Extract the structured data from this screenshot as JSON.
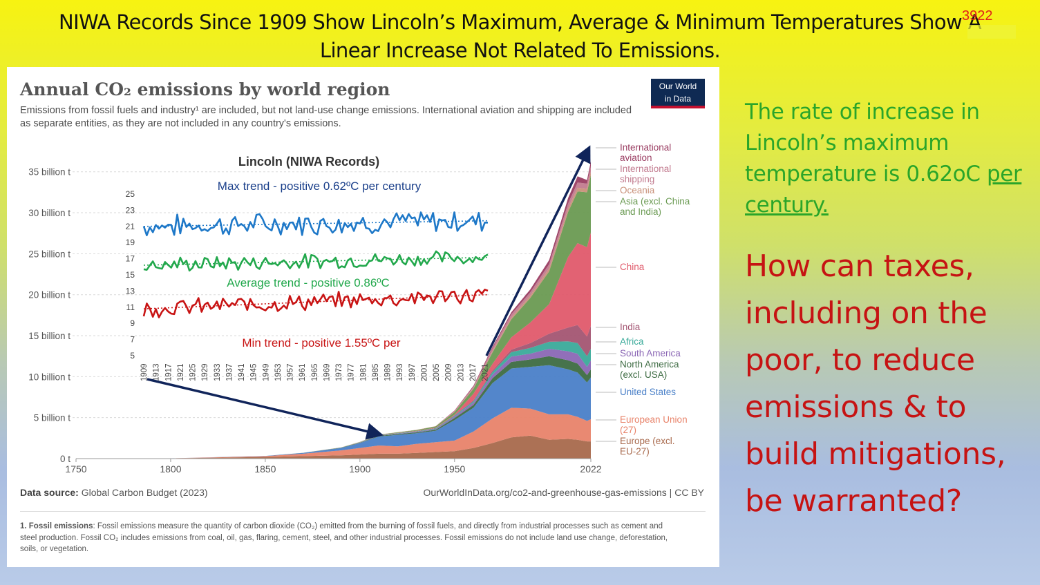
{
  "slide": {
    "title_line1": "NIWA Records Since 1909 Show Lincoln’s Maximum, Average & Minimum Temperatures Show A",
    "title_line2": "Linear Increase Not Related To Emissions.",
    "slide_number": "3922",
    "side_text_green": "The rate of increase in Lincoln’s maximum temperature is 0.62oC",
    "side_text_green_underlined": "per century.",
    "side_text_red": "How can taxes, including on the poor, to reduce emissions & to build mitigations, be warranted?"
  },
  "owid": {
    "title": "Annual CO₂ emissions by world region",
    "subtitle": "Emissions from fossil fuels and industry¹ are included, but not land-use change emissions. International aviation and shipping are included as separate entities, as they are not included in any country's emissions.",
    "logo_line1": "Our World",
    "logo_line2": "in Data",
    "data_source_label": "Data source:",
    "data_source": "Global Carbon Budget (2023)",
    "url": "OurWorldInData.org/co2-and-greenhouse-gas-emissions | CC BY",
    "footnote_label": "1. Fossil emissions",
    "footnote": ": Fossil emissions measure the quantity of carbon dioxide (CO₂) emitted from the burning of fossil fuels, and directly from industrial processes such as cement and steel production. Fossil CO₂ includes emissions from coal, oil, gas, flaring, cement, steel, and other industrial processes. Fossil emissions do not include land use change, deforestation, soils, or vegetation."
  },
  "colors": {
    "europe": "#a8694c",
    "eu27": "#e8836a",
    "usa": "#4a80c8",
    "north_america": "#3d6b42",
    "south_america": "#8b67b5",
    "africa": "#3aaa9a",
    "india": "#a35572",
    "china": "#e05a6b",
    "asia": "#6a9a52",
    "oceania": "#c9917a",
    "shipping": "#c27b8f",
    "aviation": "#9a3d62",
    "max_line": "#1e78c8",
    "avg_line": "#22a84c",
    "min_line": "#c81414",
    "arrow": "#10245a"
  },
  "chart_data": [
    {
      "type": "area",
      "title": "Annual CO₂ emissions by world region",
      "stacked": true,
      "units": "billion t",
      "x_ticks": [
        "1750",
        "1800",
        "1850",
        "1900",
        "1950",
        "2022"
      ],
      "y_ticks": [
        "0 t",
        "5 billion t",
        "10 billion t",
        "15 billion t",
        "20 billion t",
        "25 billion t",
        "30 billion t",
        "35 billion t"
      ],
      "ylim": [
        0,
        37
      ],
      "xlim": [
        1750,
        2022
      ],
      "x": [
        1750,
        1800,
        1850,
        1870,
        1890,
        1900,
        1910,
        1920,
        1930,
        1940,
        1950,
        1960,
        1970,
        1980,
        1990,
        2000,
        2010,
        2015,
        2020,
        2022
      ],
      "series": [
        {
          "name": "Europe (excl. EU-27)",
          "color_key": "europe",
          "values": [
            0.01,
            0.03,
            0.2,
            0.3,
            0.4,
            0.5,
            0.6,
            0.6,
            0.7,
            0.8,
            0.9,
            1.3,
            1.9,
            2.6,
            2.8,
            2.3,
            2.4,
            2.3,
            2.1,
            2.1
          ]
        },
        {
          "name": "European Union (27)",
          "color_key": "eu27",
          "values": [
            0.0,
            0.01,
            0.1,
            0.3,
            0.6,
            0.8,
            1.0,
            0.9,
            1.1,
            1.2,
            1.3,
            2.0,
            3.0,
            3.6,
            3.3,
            3.1,
            3.0,
            2.8,
            2.5,
            2.7
          ]
        },
        {
          "name": "United States",
          "color_key": "usa",
          "values": [
            0.0,
            0.0,
            0.03,
            0.1,
            0.3,
            0.6,
            1.1,
            1.4,
            1.3,
            1.4,
            2.5,
            2.9,
            4.3,
            4.8,
            5.1,
            6.0,
            5.5,
            5.4,
            4.7,
            5.1
          ]
        },
        {
          "name": "North America (excl. USA)",
          "color_key": "north_america",
          "values": [
            0.0,
            0.0,
            0.0,
            0.01,
            0.02,
            0.04,
            0.07,
            0.1,
            0.1,
            0.12,
            0.25,
            0.35,
            0.6,
            0.8,
            0.9,
            1.1,
            1.1,
            1.1,
            0.9,
            1.0
          ]
        },
        {
          "name": "South America",
          "color_key": "south_america",
          "values": [
            0.0,
            0.0,
            0.0,
            0.0,
            0.01,
            0.02,
            0.03,
            0.05,
            0.07,
            0.09,
            0.18,
            0.3,
            0.45,
            0.65,
            0.7,
            0.9,
            1.1,
            1.2,
            1.0,
            1.1
          ]
        },
        {
          "name": "Africa",
          "color_key": "africa",
          "values": [
            0.0,
            0.0,
            0.0,
            0.0,
            0.01,
            0.02,
            0.03,
            0.04,
            0.05,
            0.07,
            0.1,
            0.15,
            0.3,
            0.55,
            0.7,
            0.85,
            1.2,
            1.3,
            1.3,
            1.4
          ]
        },
        {
          "name": "India",
          "color_key": "india",
          "values": [
            0.0,
            0.0,
            0.0,
            0.0,
            0.01,
            0.02,
            0.03,
            0.03,
            0.04,
            0.05,
            0.07,
            0.12,
            0.2,
            0.3,
            0.6,
            1.0,
            1.7,
            2.2,
            2.4,
            2.8
          ]
        },
        {
          "name": "China",
          "color_key": "china",
          "values": [
            0.0,
            0.0,
            0.0,
            0.0,
            0.0,
            0.01,
            0.01,
            0.02,
            0.03,
            0.05,
            0.08,
            0.8,
            0.8,
            1.5,
            2.5,
            3.6,
            8.6,
            10.0,
            10.9,
            11.4
          ]
        },
        {
          "name": "Asia (excl. China and India)",
          "color_key": "asia",
          "values": [
            0.0,
            0.0,
            0.0,
            0.0,
            0.01,
            0.02,
            0.05,
            0.07,
            0.1,
            0.15,
            0.3,
            0.6,
            1.4,
            2.2,
            3.0,
            4.0,
            5.5,
            6.3,
            6.7,
            7.0
          ]
        },
        {
          "name": "Oceania",
          "color_key": "oceania",
          "values": [
            0.0,
            0.0,
            0.0,
            0.0,
            0.01,
            0.01,
            0.02,
            0.02,
            0.03,
            0.03,
            0.05,
            0.08,
            0.15,
            0.22,
            0.3,
            0.38,
            0.44,
            0.45,
            0.43,
            0.44
          ]
        },
        {
          "name": "International shipping",
          "color_key": "shipping",
          "values": [
            0.0,
            0.0,
            0.0,
            0.0,
            0.0,
            0.0,
            0.0,
            0.0,
            0.0,
            0.0,
            0.1,
            0.2,
            0.35,
            0.4,
            0.4,
            0.5,
            0.6,
            0.65,
            0.62,
            0.65
          ]
        },
        {
          "name": "International aviation",
          "color_key": "aviation",
          "values": [
            0.0,
            0.0,
            0.0,
            0.0,
            0.0,
            0.0,
            0.0,
            0.0,
            0.0,
            0.0,
            0.05,
            0.1,
            0.17,
            0.25,
            0.35,
            0.5,
            0.65,
            0.75,
            0.45,
            0.58
          ]
        }
      ]
    },
    {
      "type": "line",
      "title": "Lincoln (NIWA Records)",
      "units": "°C",
      "x_start": 1909,
      "x_end": 2022,
      "x_ticks": [
        "1909",
        "1913",
        "1917",
        "1921",
        "1925",
        "1929",
        "1933",
        "1937",
        "1941",
        "1945",
        "1949",
        "1953",
        "1957",
        "1961",
        "1965",
        "1969",
        "1973",
        "1977",
        "1981",
        "1985",
        "1989",
        "1993",
        "1997",
        "2001",
        "2005",
        "2009",
        "2013",
        "2017",
        "2021"
      ],
      "y_ticks": [
        "5",
        "7",
        "9",
        "11",
        "13",
        "15",
        "17",
        "19",
        "21",
        "23",
        "25"
      ],
      "ylim": [
        5,
        25
      ],
      "series": [
        {
          "name": "Max",
          "color_key": "max_line",
          "mean_1909": 21.0,
          "trend_per_century": 0.62,
          "amplitude": 1.2,
          "trend_label": "Max trend - positive 0.62ºC per century"
        },
        {
          "name": "Average",
          "color_key": "avg_line",
          "mean_1909": 16.2,
          "trend_per_century": 0.86,
          "amplitude": 0.8,
          "trend_label": "Average trend - positive 0.86ºC"
        },
        {
          "name": "Min",
          "color_key": "min_line",
          "mean_1909": 10.8,
          "trend_per_century": 1.55,
          "amplitude": 0.9,
          "trend_label": "Min trend - positive 1.55ºC per"
        }
      ]
    }
  ]
}
